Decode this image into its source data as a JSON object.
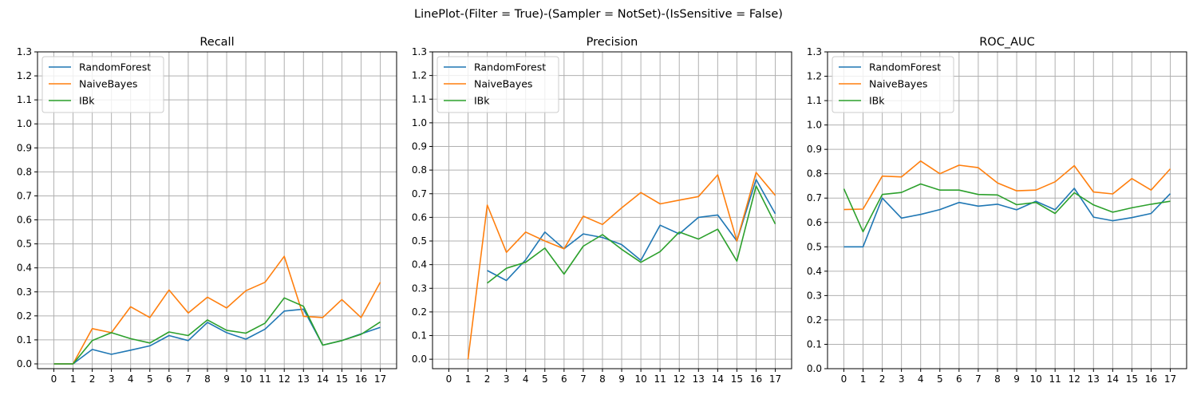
{
  "figure": {
    "suptitle": "LinePlot-(Filter = True)-(Sampler = NotSet)-(IsSensitive = False)"
  },
  "colors": {
    "RandomForest": "#1f77b4",
    "NaiveBayes": "#ff7f0e",
    "IBk": "#2ca02c"
  },
  "chart_data": [
    {
      "type": "line",
      "title": "Recall",
      "xlabel": "",
      "ylabel": "",
      "x": [
        0,
        1,
        2,
        3,
        4,
        5,
        6,
        7,
        8,
        9,
        10,
        11,
        12,
        13,
        14,
        15,
        16,
        17
      ],
      "xticks": [
        "0",
        "1",
        "2",
        "3",
        "4",
        "5",
        "6",
        "7",
        "8",
        "9",
        "10",
        "11",
        "12",
        "13",
        "14",
        "15",
        "16",
        "17"
      ],
      "yticks": [
        "0.0",
        "0.1",
        "0.2",
        "0.3",
        "0.4",
        "0.5",
        "0.6",
        "0.7",
        "0.8",
        "0.9",
        "1.0",
        "1.1",
        "1.2",
        "1.3"
      ],
      "ylim": [
        -0.02,
        1.3
      ],
      "xlim": [
        -0.85,
        17.85
      ],
      "grid": true,
      "legend": "upper-left",
      "series": [
        {
          "name": "RandomForest",
          "values": [
            0.0,
            0.0,
            0.06,
            0.04,
            0.057,
            0.075,
            0.118,
            0.097,
            0.173,
            0.13,
            0.103,
            0.145,
            0.22,
            0.228,
            0.078,
            0.097,
            0.125,
            0.152
          ]
        },
        {
          "name": "NaiveBayes",
          "values": [
            0.0,
            0.0,
            0.147,
            0.13,
            0.238,
            0.193,
            0.308,
            0.212,
            0.278,
            0.233,
            0.305,
            0.34,
            0.448,
            0.198,
            0.193,
            0.268,
            0.193,
            0.34
          ]
        },
        {
          "name": "IBk",
          "values": [
            0.0,
            0.0,
            0.097,
            0.13,
            0.105,
            0.087,
            0.133,
            0.118,
            0.183,
            0.14,
            0.128,
            0.17,
            0.275,
            0.24,
            0.078,
            0.097,
            0.123,
            0.175
          ]
        }
      ]
    },
    {
      "type": "line",
      "title": "Precision",
      "xlabel": "",
      "ylabel": "",
      "x": [
        0,
        1,
        2,
        3,
        4,
        5,
        6,
        7,
        8,
        9,
        10,
        11,
        12,
        13,
        14,
        15,
        16,
        17
      ],
      "xticks": [
        "0",
        "1",
        "2",
        "3",
        "4",
        "5",
        "6",
        "7",
        "8",
        "9",
        "10",
        "11",
        "12",
        "13",
        "14",
        "15",
        "16",
        "17"
      ],
      "yticks": [
        "0.0",
        "0.1",
        "0.2",
        "0.3",
        "0.4",
        "0.5",
        "0.6",
        "0.7",
        "0.8",
        "0.9",
        "1.0",
        "1.1",
        "1.2",
        "1.3"
      ],
      "ylim": [
        -0.04,
        1.3
      ],
      "xlim": [
        -0.85,
        17.85
      ],
      "grid": true,
      "legend": "upper-left",
      "series": [
        {
          "name": "RandomForest",
          "values": [
            null,
            null,
            0.375,
            0.333,
            0.42,
            0.538,
            0.467,
            0.53,
            0.515,
            0.485,
            0.418,
            0.567,
            0.53,
            0.6,
            0.61,
            0.5,
            0.76,
            0.615
          ]
        },
        {
          "name": "NaiveBayes",
          "values": [
            null,
            0.0,
            0.652,
            0.452,
            0.538,
            0.5,
            0.467,
            0.605,
            0.57,
            0.64,
            0.705,
            0.657,
            0.673,
            0.688,
            0.78,
            0.5,
            0.79,
            0.693
          ]
        },
        {
          "name": "IBk",
          "values": [
            null,
            null,
            0.322,
            0.385,
            0.41,
            0.47,
            0.36,
            0.478,
            0.527,
            0.465,
            0.41,
            0.455,
            0.538,
            0.508,
            0.55,
            0.415,
            0.733,
            0.572
          ]
        }
      ]
    },
    {
      "type": "line",
      "title": "ROC_AUC",
      "xlabel": "",
      "ylabel": "",
      "x": [
        0,
        1,
        2,
        3,
        4,
        5,
        6,
        7,
        8,
        9,
        10,
        11,
        12,
        13,
        14,
        15,
        16,
        17
      ],
      "xticks": [
        "0",
        "1",
        "2",
        "3",
        "4",
        "5",
        "6",
        "7",
        "8",
        "9",
        "10",
        "11",
        "12",
        "13",
        "14",
        "15",
        "16",
        "17"
      ],
      "yticks": [
        "0.0",
        "0.1",
        "0.2",
        "0.3",
        "0.4",
        "0.5",
        "0.6",
        "0.7",
        "0.8",
        "0.9",
        "1.0",
        "1.1",
        "1.2",
        "1.3"
      ],
      "ylim": [
        0.0,
        1.3
      ],
      "xlim": [
        -0.85,
        17.85
      ],
      "grid": true,
      "legend": "upper-left",
      "series": [
        {
          "name": "RandomForest",
          "values": [
            0.5,
            0.5,
            0.7,
            0.618,
            0.633,
            0.653,
            0.682,
            0.667,
            0.675,
            0.652,
            0.687,
            0.652,
            0.74,
            0.622,
            0.607,
            0.62,
            0.637,
            0.718
          ]
        },
        {
          "name": "NaiveBayes",
          "values": [
            0.653,
            0.655,
            0.79,
            0.787,
            0.852,
            0.8,
            0.835,
            0.825,
            0.762,
            0.73,
            0.733,
            0.767,
            0.833,
            0.725,
            0.717,
            0.78,
            0.733,
            0.82
          ]
        },
        {
          "name": "IBk",
          "values": [
            0.738,
            0.562,
            0.715,
            0.723,
            0.758,
            0.733,
            0.733,
            0.715,
            0.713,
            0.673,
            0.682,
            0.637,
            0.722,
            0.672,
            0.642,
            0.66,
            0.675,
            0.687
          ]
        }
      ]
    }
  ]
}
